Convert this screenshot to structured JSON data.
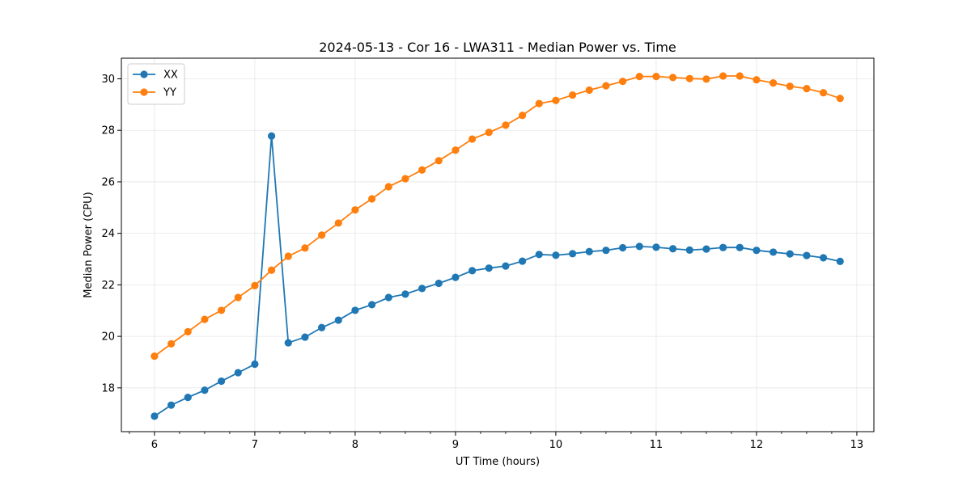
{
  "chart_data": {
    "type": "line",
    "title": "2024-05-13 - Cor 16 - LWA311 - Median Power vs. Time",
    "xlabel": "UT Time (hours)",
    "ylabel": "Median Power (CPU)",
    "xlim": [
      5.67,
      13.17
    ],
    "ylim": [
      16.3,
      30.8
    ],
    "xticks": [
      6,
      7,
      8,
      9,
      10,
      11,
      12,
      13
    ],
    "xminor_step": 0.25,
    "yticks": [
      18,
      20,
      22,
      24,
      26,
      28,
      30
    ],
    "grid": true,
    "legend_position": "upper left",
    "x": [
      6.0,
      6.1667,
      6.3333,
      6.5,
      6.6667,
      6.8333,
      7.0,
      7.1667,
      7.3333,
      7.5,
      7.6667,
      7.8333,
      8.0,
      8.1667,
      8.3333,
      8.5,
      8.6667,
      8.8333,
      9.0,
      9.1667,
      9.3333,
      9.5,
      9.6667,
      9.8333,
      10.0,
      10.1667,
      10.3333,
      10.5,
      10.6667,
      10.8333,
      11.0,
      11.1667,
      11.3333,
      11.5,
      11.6667,
      11.8333,
      12.0,
      12.1667,
      12.3333,
      12.5,
      12.6667,
      12.8333
    ],
    "series": [
      {
        "name": "XX",
        "color": "#1f77b4",
        "values": [
          16.9,
          17.33,
          17.63,
          17.91,
          18.26,
          18.59,
          18.92,
          27.78,
          19.75,
          19.97,
          20.34,
          20.63,
          21.01,
          21.23,
          21.51,
          21.64,
          21.86,
          22.06,
          22.29,
          22.55,
          22.65,
          22.73,
          22.92,
          23.18,
          23.15,
          23.21,
          23.29,
          23.34,
          23.44,
          23.49,
          23.46,
          23.4,
          23.35,
          23.39,
          23.45,
          23.45,
          23.34,
          23.27,
          23.2,
          23.14,
          23.05,
          22.91
        ]
      },
      {
        "name": "YY",
        "color": "#ff7f0e",
        "values": [
          19.23,
          19.71,
          20.18,
          20.66,
          21.01,
          21.51,
          21.97,
          22.57,
          23.11,
          23.43,
          23.93,
          24.4,
          24.91,
          25.34,
          25.81,
          26.12,
          26.46,
          26.82,
          27.23,
          27.66,
          27.92,
          28.2,
          28.58,
          29.04,
          29.16,
          29.37,
          29.56,
          29.73,
          29.9,
          30.09,
          30.09,
          30.05,
          30.01,
          29.99,
          30.11,
          30.11,
          29.96,
          29.84,
          29.71,
          29.62,
          29.46,
          29.24
        ]
      }
    ]
  }
}
